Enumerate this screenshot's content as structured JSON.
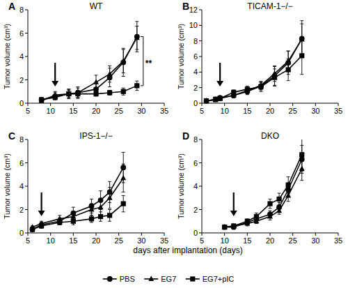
{
  "x_label": "days after implantation (days)",
  "chart_data": [
    {
      "type": "line",
      "label": "A",
      "title": "WT",
      "y_label": "Tumor volume (cm³)",
      "xlim": [
        5,
        35
      ],
      "xticks": [
        5,
        10,
        15,
        20,
        25,
        30,
        35
      ],
      "ylim": [
        0,
        8
      ],
      "yticks": [
        0,
        2,
        4,
        6,
        8
      ],
      "arrow_x": 11,
      "significance": {
        "label": "**"
      },
      "x": [
        8,
        11,
        14,
        16,
        20,
        23,
        26,
        29
      ],
      "series": [
        {
          "name": "PBS",
          "color": "#000000",
          "marker": "circle",
          "values": [
            0.3,
            0.6,
            0.8,
            0.9,
            1.2,
            2.2,
            3.5,
            5.7
          ],
          "errors": [
            0.1,
            0.3,
            0.4,
            0.5,
            0.5,
            0.8,
            1.2,
            1.3
          ]
        },
        {
          "name": "EG7",
          "color": "#000000",
          "marker": "triangle",
          "values": [
            0.2,
            0.7,
            0.8,
            0.9,
            1.8,
            2.5,
            3.6,
            5.6
          ],
          "errors": [
            0.1,
            0.3,
            0.4,
            0.4,
            0.6,
            0.7,
            1.0,
            1.0
          ]
        },
        {
          "name": "EG7+pIC",
          "color": "#000000",
          "marker": "square",
          "values": [
            0.3,
            0.5,
            0.8,
            0.8,
            0.8,
            0.9,
            1.0,
            1.5
          ],
          "errors": [
            0.1,
            0.2,
            0.3,
            0.3,
            0.2,
            0.2,
            0.3,
            0.4
          ]
        }
      ]
    },
    {
      "type": "line",
      "label": "B",
      "title": "TICAM-1−/−",
      "y_label": "Tumor volume (cm³)",
      "xlim": [
        5,
        35
      ],
      "xticks": [
        5,
        10,
        15,
        20,
        25,
        30,
        35
      ],
      "ylim": [
        0,
        12
      ],
      "yticks": [
        0,
        2,
        4,
        6,
        8,
        10,
        12
      ],
      "arrow_x": 9,
      "x": [
        6,
        8,
        9,
        12,
        15,
        18,
        21,
        24,
        27
      ],
      "series": [
        {
          "name": "PBS",
          "color": "#000000",
          "marker": "circle",
          "values": [
            0.3,
            0.5,
            0.7,
            1.0,
            1.5,
            2.2,
            3.5,
            5.2,
            8.3
          ],
          "errors": [
            0.1,
            0.1,
            0.2,
            0.3,
            0.4,
            0.5,
            1.2,
            1.5,
            2.3
          ]
        },
        {
          "name": "EG7",
          "color": "#000000",
          "marker": "triangle",
          "values": [
            0.3,
            0.4,
            0.6,
            1.0,
            1.6,
            2.3,
            3.8,
            5.4,
            8.2
          ],
          "errors": [
            0.1,
            0.1,
            0.2,
            0.3,
            0.4,
            0.5,
            1.0,
            1.3,
            2.0
          ]
        },
        {
          "name": "EG7+pIC",
          "color": "#000000",
          "marker": "square",
          "values": [
            0.3,
            0.5,
            0.6,
            1.4,
            1.8,
            2.1,
            3.3,
            4.3,
            6.1
          ],
          "errors": [
            0.1,
            0.1,
            0.2,
            0.3,
            0.4,
            0.6,
            1.1,
            1.4,
            2.4
          ]
        }
      ]
    },
    {
      "type": "line",
      "label": "C",
      "title": "IPS-1−/−",
      "y_label": "Tumor volume (cm³)",
      "xlim": [
        5,
        35
      ],
      "xticks": [
        5,
        10,
        15,
        20,
        25,
        30,
        35
      ],
      "ylim": [
        0,
        8
      ],
      "yticks": [
        0,
        2,
        4,
        6,
        8
      ],
      "arrow_x": 8,
      "x": [
        6,
        8,
        12,
        15,
        19,
        21,
        23,
        26
      ],
      "series": [
        {
          "name": "PBS",
          "color": "#000000",
          "marker": "circle",
          "values": [
            0.3,
            0.7,
            1.0,
            1.7,
            2.3,
            2.8,
            3.5,
            5.6
          ],
          "errors": [
            0.1,
            0.2,
            0.3,
            0.5,
            0.6,
            0.8,
            0.9,
            1.3
          ]
        },
        {
          "name": "EG7",
          "color": "#000000",
          "marker": "triangle",
          "values": [
            0.5,
            0.8,
            1.2,
            1.4,
            2.0,
            2.2,
            3.0,
            4.7
          ],
          "errors": [
            0.1,
            0.2,
            0.3,
            0.4,
            0.5,
            0.7,
            0.9,
            1.2
          ]
        },
        {
          "name": "EG7+pIC",
          "color": "#000000",
          "marker": "square",
          "values": [
            0.3,
            0.6,
            0.9,
            1.0,
            1.2,
            1.4,
            1.5,
            2.5
          ],
          "errors": [
            0.1,
            0.2,
            0.2,
            0.3,
            0.3,
            0.4,
            0.5,
            0.7
          ]
        }
      ]
    },
    {
      "type": "line",
      "label": "D",
      "title": "DKO",
      "y_label": "Tumor volume (cm³)",
      "xlim": [
        5,
        35
      ],
      "xticks": [
        5,
        10,
        15,
        20,
        25,
        30,
        35
      ],
      "ylim": [
        0,
        8
      ],
      "yticks": [
        0,
        2,
        4,
        6,
        8
      ],
      "arrow_x": 12,
      "x": [
        10,
        12,
        15,
        17,
        20,
        22,
        24,
        27
      ],
      "series": [
        {
          "name": "PBS",
          "color": "#000000",
          "marker": "circle",
          "values": [
            0.5,
            0.5,
            0.9,
            1.2,
            1.6,
            2.2,
            3.7,
            6.3
          ],
          "errors": [
            0.1,
            0.1,
            0.2,
            0.2,
            0.3,
            0.4,
            0.6,
            1.2
          ]
        },
        {
          "name": "EG7",
          "color": "#000000",
          "marker": "triangle",
          "values": [
            0.5,
            0.6,
            0.8,
            1.0,
            1.4,
            1.9,
            3.2,
            5.5
          ],
          "errors": [
            0.1,
            0.1,
            0.2,
            0.2,
            0.3,
            0.3,
            0.5,
            1.0
          ]
        },
        {
          "name": "EG7+pIC",
          "color": "#000000",
          "marker": "square",
          "values": [
            0.5,
            0.6,
            1.0,
            1.4,
            2.5,
            2.9,
            4.1,
            6.7
          ],
          "errors": [
            0.1,
            0.1,
            0.2,
            0.3,
            0.4,
            0.5,
            0.7,
            1.4
          ]
        }
      ]
    }
  ]
}
